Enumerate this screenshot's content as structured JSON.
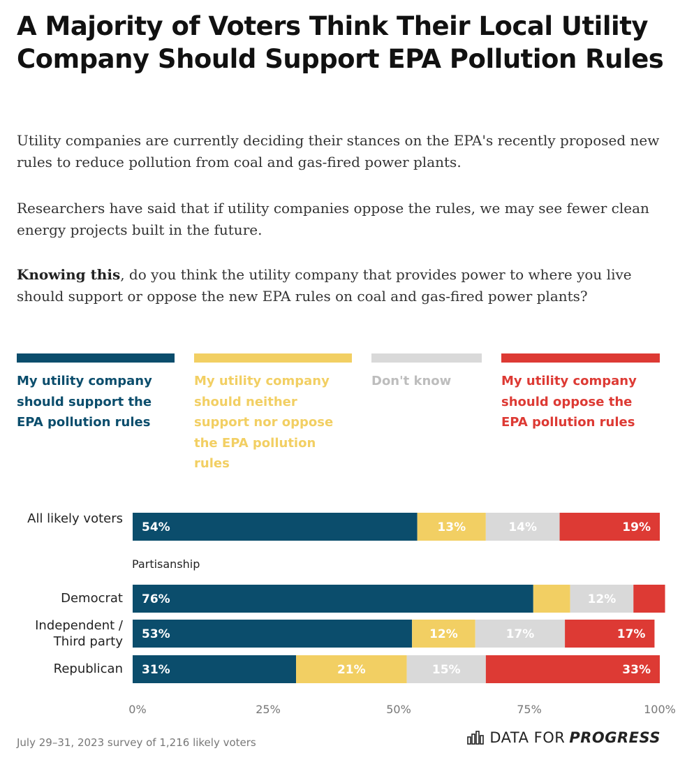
{
  "title": "A Majority of Voters Think Their Local Utility Company Should Support EPA Pollution Rules",
  "intro": {
    "p1": "Utility companies are currently deciding their stances on the EPA's recently proposed new rules to reduce pollution from coal and gas-fired power plants.",
    "p2": "Researchers have said that if utility companies oppose the rules, we may see fewer clean energy projects built in the future.",
    "p3_bold": "Knowing this",
    "p3_rest": ", do you think the utility company that provides power to where you live should support or oppose the new EPA rules on coal and gas-fired power plants?"
  },
  "legend": [
    {
      "label": "My utility company should support the EPA pollution rules",
      "color": "#0b4d6c"
    },
    {
      "label": "My utility company should neither support nor oppose the EPA pollution rules",
      "color": "#f2cf63"
    },
    {
      "label": "Don't know",
      "color": "#d9d9d9"
    },
    {
      "label": "My utility company should oppose the EPA pollution rules",
      "color": "#dd3a34"
    }
  ],
  "group_label": "Partisanship",
  "chart_data": {
    "type": "bar",
    "orientation": "horizontal",
    "stacked": true,
    "categories": [
      "All likely voters",
      "Democrat",
      "Independent / Third party",
      "Republican"
    ],
    "series": [
      {
        "name": "My utility company should support the EPA pollution rules",
        "color": "#0b4d6c",
        "values": [
          54,
          76,
          53,
          31
        ],
        "labels": [
          "54%",
          "76%",
          "53%",
          "31%"
        ]
      },
      {
        "name": "My utility company should neither support nor oppose the EPA pollution rules",
        "color": "#f2cf63",
        "values": [
          13,
          7,
          12,
          21
        ],
        "labels": [
          "13%",
          "",
          "12%",
          "21%"
        ]
      },
      {
        "name": "Don't know",
        "color": "#d9d9d9",
        "values": [
          14,
          12,
          17,
          15
        ],
        "labels": [
          "14%",
          "12%",
          "17%",
          "15%"
        ]
      },
      {
        "name": "My utility company should oppose the EPA pollution rules",
        "color": "#dd3a34",
        "values": [
          19,
          6,
          17,
          33
        ],
        "labels": [
          "19%",
          "",
          "17%",
          "33%"
        ]
      }
    ],
    "xlim": [
      0,
      100
    ],
    "x_ticks": [
      "0%",
      "25%",
      "50%",
      "75%",
      "100%"
    ]
  },
  "footnote": "July 29–31, 2023 survey of 1,216 likely voters",
  "brand": {
    "prefix": "DATA FOR",
    "strong": "PROGRESS",
    "icon": "bar-chart-logo-icon"
  }
}
